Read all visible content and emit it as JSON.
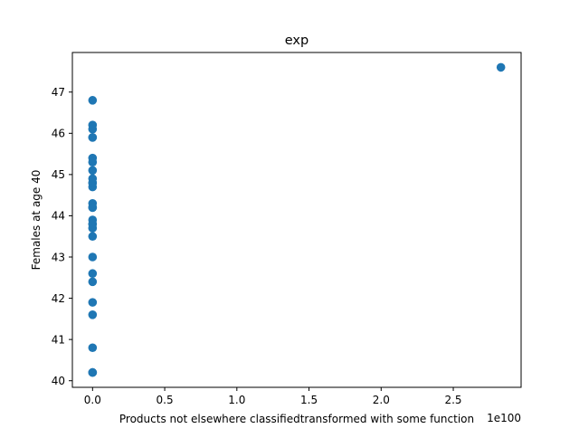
{
  "chart_data": {
    "type": "scatter",
    "title": "exp",
    "xlabel": "Products not elsewhere classifiedtransformed with some function",
    "ylabel": "Females at age 40",
    "x_offset_text": "1e100",
    "x_scale_factor": 1e+100,
    "xlim": [
      -0.14,
      2.97
    ],
    "ylim": [
      39.84,
      47.96
    ],
    "x_ticks": [
      0.0,
      0.5,
      1.0,
      1.5,
      2.0,
      2.5
    ],
    "x_tick_labels": [
      "0.0",
      "0.5",
      "1.0",
      "1.5",
      "2.0",
      "2.5"
    ],
    "y_ticks": [
      40,
      41,
      42,
      43,
      44,
      45,
      46,
      47
    ],
    "y_tick_labels": [
      "40",
      "41",
      "42",
      "43",
      "44",
      "45",
      "46",
      "47"
    ],
    "grid": false,
    "legend": "none",
    "marker_color": "#1f77b4",
    "x": [
      0,
      0,
      0,
      0,
      0,
      0,
      0,
      0,
      0,
      0,
      0,
      0,
      0,
      0,
      0,
      0,
      0,
      0,
      0,
      0,
      0,
      0,
      0,
      0,
      0,
      0,
      0,
      0,
      2.83
    ],
    "y": [
      46.8,
      46.2,
      46.1,
      45.9,
      45.4,
      45.3,
      45.1,
      44.9,
      44.8,
      44.7,
      44.3,
      44.2,
      43.9,
      43.8,
      43.7,
      43.5,
      43.0,
      42.6,
      42.4,
      41.9,
      41.6,
      40.8,
      40.2,
      40.2,
      44.8,
      45.9,
      44.2,
      43.8,
      47.6
    ]
  }
}
